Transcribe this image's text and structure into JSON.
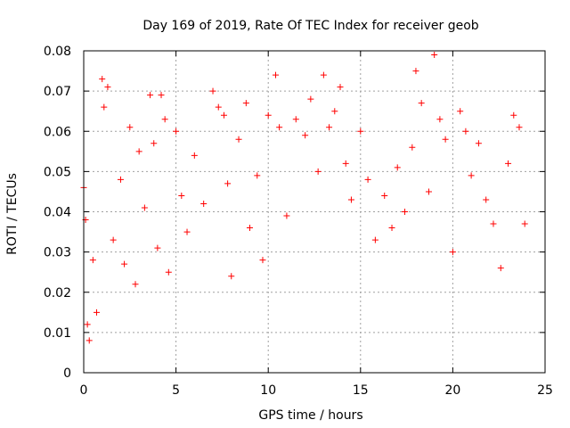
{
  "chart_data": {
    "type": "scatter",
    "title": "Day 169 of 2019, Rate Of TEC Index for receiver geob",
    "xlabel": "GPS time / hours",
    "ylabel": "ROTI / TECUs",
    "xlim": [
      0,
      25
    ],
    "ylim": [
      0,
      0.08
    ],
    "xticks": [
      0,
      5,
      10,
      15,
      20,
      25
    ],
    "xtick_labels": [
      "0",
      "5",
      "10",
      "15",
      "20",
      "25"
    ],
    "yticks": [
      0,
      0.01,
      0.02,
      0.03,
      0.04,
      0.05,
      0.06,
      0.07,
      0.08
    ],
    "ytick_labels": [
      "0",
      "0.01",
      "0.02",
      "0.03",
      "0.04",
      "0.05",
      "0.06",
      "0.07",
      "0.08"
    ],
    "grid": true,
    "marker": "+",
    "color": "#ff0000",
    "series": [
      {
        "name": "ROTI",
        "x": [
          0.0,
          0.1,
          0.2,
          0.3,
          0.5,
          0.7,
          1.0,
          1.1,
          1.3,
          1.6,
          2.0,
          2.2,
          2.5,
          2.8,
          3.0,
          3.3,
          3.6,
          3.8,
          4.0,
          4.2,
          4.4,
          4.6,
          5.0,
          5.3,
          5.6,
          6.0,
          6.5,
          7.0,
          7.3,
          7.6,
          7.8,
          8.0,
          8.4,
          8.8,
          9.0,
          9.4,
          9.7,
          10.0,
          10.4,
          10.6,
          11.0,
          11.5,
          12.0,
          12.3,
          12.7,
          13.0,
          13.3,
          13.6,
          13.9,
          14.2,
          14.5,
          15.0,
          15.4,
          15.8,
          16.3,
          16.7,
          17.0,
          17.4,
          17.8,
          18.0,
          18.3,
          18.7,
          19.0,
          19.3,
          19.6,
          20.0,
          20.4,
          20.7,
          21.0,
          21.4,
          21.8,
          22.2,
          22.6,
          23.0,
          23.3,
          23.6,
          23.9
        ],
        "y": [
          0.046,
          0.038,
          0.012,
          0.008,
          0.028,
          0.015,
          0.073,
          0.066,
          0.071,
          0.033,
          0.048,
          0.027,
          0.061,
          0.022,
          0.055,
          0.041,
          0.069,
          0.057,
          0.031,
          0.069,
          0.063,
          0.025,
          0.06,
          0.044,
          0.035,
          0.054,
          0.042,
          0.07,
          0.066,
          0.064,
          0.047,
          0.024,
          0.058,
          0.067,
          0.036,
          0.049,
          0.028,
          0.064,
          0.074,
          0.061,
          0.039,
          0.063,
          0.059,
          0.068,
          0.05,
          0.074,
          0.061,
          0.065,
          0.071,
          0.052,
          0.043,
          0.06,
          0.048,
          0.033,
          0.044,
          0.036,
          0.051,
          0.04,
          0.056,
          0.075,
          0.067,
          0.045,
          0.079,
          0.063,
          0.058,
          0.03,
          0.065,
          0.06,
          0.049,
          0.057,
          0.043,
          0.037,
          0.026,
          0.052,
          0.064,
          0.061,
          0.037
        ]
      }
    ]
  }
}
